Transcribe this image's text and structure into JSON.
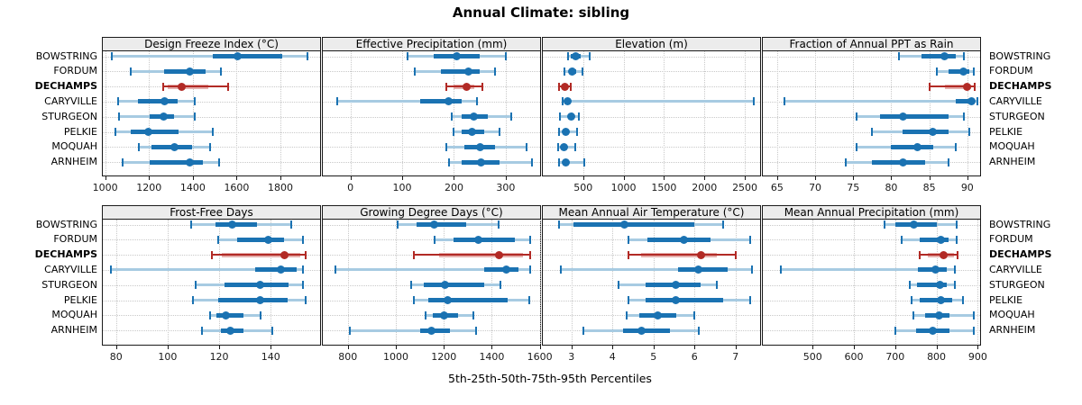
{
  "figure": {
    "title": "Annual Climate: sibling",
    "x_axis_caption": "5th-25th-50th-75th-95th Percentiles"
  },
  "colors": {
    "series_blue": "#1A72B2",
    "series_blue_light": "#A7CBE2",
    "series_red": "#B22A25",
    "series_red_light": "#E5AFAC",
    "strip_background": "#ECECEC",
    "gridline": "#C9C9C9",
    "panel_border": "#1A1A1A"
  },
  "chart_data": {
    "type": "scatter",
    "subtype": "percentile-dot-whisker-trellis",
    "title": "Annual Climate: sibling",
    "xlabel": "5th-25th-50th-75th-95th Percentiles",
    "legend_position": "none",
    "grid": "dotted both axes",
    "layout": "2 rows x 4 columns of panels, shared station category axis",
    "stations": [
      "BOWSTRING",
      "FORDUM",
      "DECHAMPS",
      "CARYVILLE",
      "STURGEON",
      "PELKIE",
      "MOQUAH",
      "ARNHEIM"
    ],
    "highlighted_station": "DECHAMPS",
    "percentiles": [
      5,
      25,
      50,
      75,
      95
    ],
    "panels": [
      {
        "title": "Design Freeze Index (°C)",
        "xlim": [
          985,
          1985
        ],
        "ticks": [
          1000,
          1200,
          1400,
          1600,
          1800
        ],
        "values": [
          [
            1030,
            1490,
            1605,
            1810,
            1925
          ],
          [
            1115,
            1270,
            1385,
            1460,
            1530
          ],
          [
            1265,
            1285,
            1350,
            1470,
            1560
          ],
          [
            1060,
            1150,
            1270,
            1330,
            1410
          ],
          [
            1065,
            1205,
            1265,
            1315,
            1410
          ],
          [
            1045,
            1115,
            1195,
            1335,
            1490
          ],
          [
            1155,
            1210,
            1315,
            1395,
            1480
          ],
          [
            1080,
            1205,
            1385,
            1445,
            1520
          ]
        ]
      },
      {
        "title": "Effective Precipitation (mm)",
        "xlim": [
          -55,
          368
        ],
        "ticks": [
          0,
          100,
          200,
          300
        ],
        "values": [
          [
            110,
            160,
            205,
            250,
            300
          ],
          [
            125,
            175,
            228,
            250,
            280
          ],
          [
            185,
            200,
            225,
            240,
            255
          ],
          [
            -25,
            135,
            190,
            215,
            245
          ],
          [
            195,
            215,
            238,
            265,
            310
          ],
          [
            200,
            215,
            235,
            258,
            288
          ],
          [
            185,
            220,
            250,
            280,
            340
          ],
          [
            190,
            215,
            252,
            288,
            350
          ]
        ]
      },
      {
        "title": "Elevation (m)",
        "xlim": [
          -10,
          2700
        ],
        "ticks": [
          500,
          1000,
          1500,
          2000,
          2500
        ],
        "values": [
          [
            310,
            350,
            410,
            470,
            585
          ],
          [
            270,
            320,
            365,
            410,
            490
          ],
          [
            200,
            240,
            270,
            300,
            345
          ],
          [
            245,
            270,
            310,
            345,
            2610
          ],
          [
            210,
            310,
            355,
            390,
            445
          ],
          [
            200,
            250,
            290,
            330,
            430
          ],
          [
            190,
            230,
            260,
            290,
            405
          ],
          [
            200,
            250,
            290,
            330,
            510
          ]
        ]
      },
      {
        "title": "Fraction of Annual PPT as Rain",
        "xlim": [
          63,
          91.8
        ],
        "ticks": [
          65,
          70,
          75,
          80,
          85,
          90
        ],
        "values": [
          [
            81,
            84,
            87,
            88.5,
            89.5
          ],
          [
            86,
            87.5,
            89.5,
            90.3,
            90.8
          ],
          [
            85,
            87,
            90,
            90.5,
            91
          ],
          [
            66,
            88.5,
            90.5,
            91,
            91.3
          ],
          [
            75.5,
            78.5,
            81.5,
            87.5,
            89.5
          ],
          [
            77.5,
            81.5,
            85.5,
            87.5,
            90.3
          ],
          [
            75.5,
            80,
            83.5,
            85.5,
            88.5
          ],
          [
            74,
            77.5,
            81.5,
            84.5,
            87.5
          ]
        ]
      },
      {
        "title": "Frost-Free Days",
        "xlim": [
          74.5,
          159.5
        ],
        "ticks": [
          80,
          100,
          120,
          140
        ],
        "values": [
          [
            109,
            118.5,
            125,
            134.5,
            148
          ],
          [
            119.5,
            127,
            139,
            145,
            152.5
          ],
          [
            117,
            121,
            145.5,
            151.5,
            153.5
          ],
          [
            78,
            134,
            144,
            150,
            152.5
          ],
          [
            111,
            122,
            136,
            147,
            152.5
          ],
          [
            110,
            119.5,
            136,
            146.5,
            153.5
          ],
          [
            116.5,
            119,
            122.5,
            129.5,
            136
          ],
          [
            113.5,
            120.5,
            124.5,
            129.5,
            140.5
          ]
        ]
      },
      {
        "title": "Growing Degree Days (°C)",
        "xlim": [
          692,
          1605
        ],
        "ticks": [
          800,
          1000,
          1200,
          1400,
          1600
        ],
        "values": [
          [
            1007,
            1085,
            1160,
            1295,
            1430
          ],
          [
            1160,
            1240,
            1345,
            1495,
            1560
          ],
          [
            1075,
            1180,
            1430,
            1530,
            1560
          ],
          [
            750,
            1370,
            1460,
            1510,
            1560
          ],
          [
            1065,
            1115,
            1205,
            1370,
            1435
          ],
          [
            1075,
            1135,
            1215,
            1465,
            1555
          ],
          [
            1125,
            1155,
            1200,
            1260,
            1325
          ],
          [
            810,
            1100,
            1150,
            1225,
            1335
          ]
        ]
      },
      {
        "title": "Mean Annual Air Temperature (°C)",
        "xlim": [
          2.28,
          7.62
        ],
        "ticks": [
          3,
          4,
          5,
          6,
          7
        ],
        "values": [
          [
            2.7,
            3.05,
            4.3,
            6.0,
            6.7
          ],
          [
            4.4,
            4.85,
            5.75,
            6.4,
            7.35
          ],
          [
            4.4,
            4.7,
            6.15,
            6.55,
            7.0
          ],
          [
            2.75,
            5.6,
            6.1,
            6.8,
            7.4
          ],
          [
            4.15,
            4.8,
            5.55,
            6.15,
            6.55
          ],
          [
            4.4,
            4.8,
            5.55,
            6.7,
            7.35
          ],
          [
            4.35,
            4.65,
            5.1,
            5.55,
            6.0
          ],
          [
            3.3,
            4.25,
            4.7,
            5.4,
            6.1
          ]
        ]
      },
      {
        "title": "Mean Annual Precipitation (mm)",
        "xlim": [
          377,
          908
        ],
        "ticks": [
          500,
          600,
          700,
          800,
          900
        ],
        "values": [
          [
            675,
            700,
            745,
            800,
            850
          ],
          [
            715,
            760,
            810,
            830,
            850
          ],
          [
            760,
            780,
            818,
            842,
            852
          ],
          [
            422,
            755,
            797,
            824,
            845
          ],
          [
            735,
            752,
            808,
            825,
            845
          ],
          [
            740,
            760,
            810,
            837,
            865
          ],
          [
            745,
            772,
            806,
            831,
            890
          ],
          [
            700,
            750,
            790,
            832,
            890
          ]
        ]
      }
    ]
  }
}
